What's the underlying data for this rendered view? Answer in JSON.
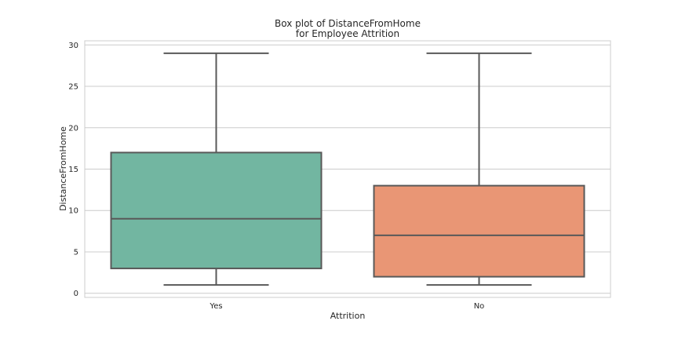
{
  "chart_data": {
    "type": "box",
    "title": "Box plot of DistanceFromHome",
    "subtitle": "for Employee Attrition",
    "xlabel": "Attrition",
    "ylabel": "DistanceFromHome",
    "ylim": [
      -0.5,
      30.5
    ],
    "yticks": [
      0,
      5,
      10,
      15,
      20,
      25,
      30
    ],
    "grid": true,
    "categories": [
      "Yes",
      "No"
    ],
    "boxes": [
      {
        "category": "Yes",
        "whisker_low": 1,
        "q1": 3,
        "median": 9,
        "q3": 17,
        "whisker_high": 29,
        "color": "#72b6a1"
      },
      {
        "category": "No",
        "whisker_low": 1,
        "q1": 2,
        "median": 7,
        "q3": 13,
        "whisker_high": 29,
        "color": "#e99675"
      }
    ],
    "line_color": "#595959"
  }
}
